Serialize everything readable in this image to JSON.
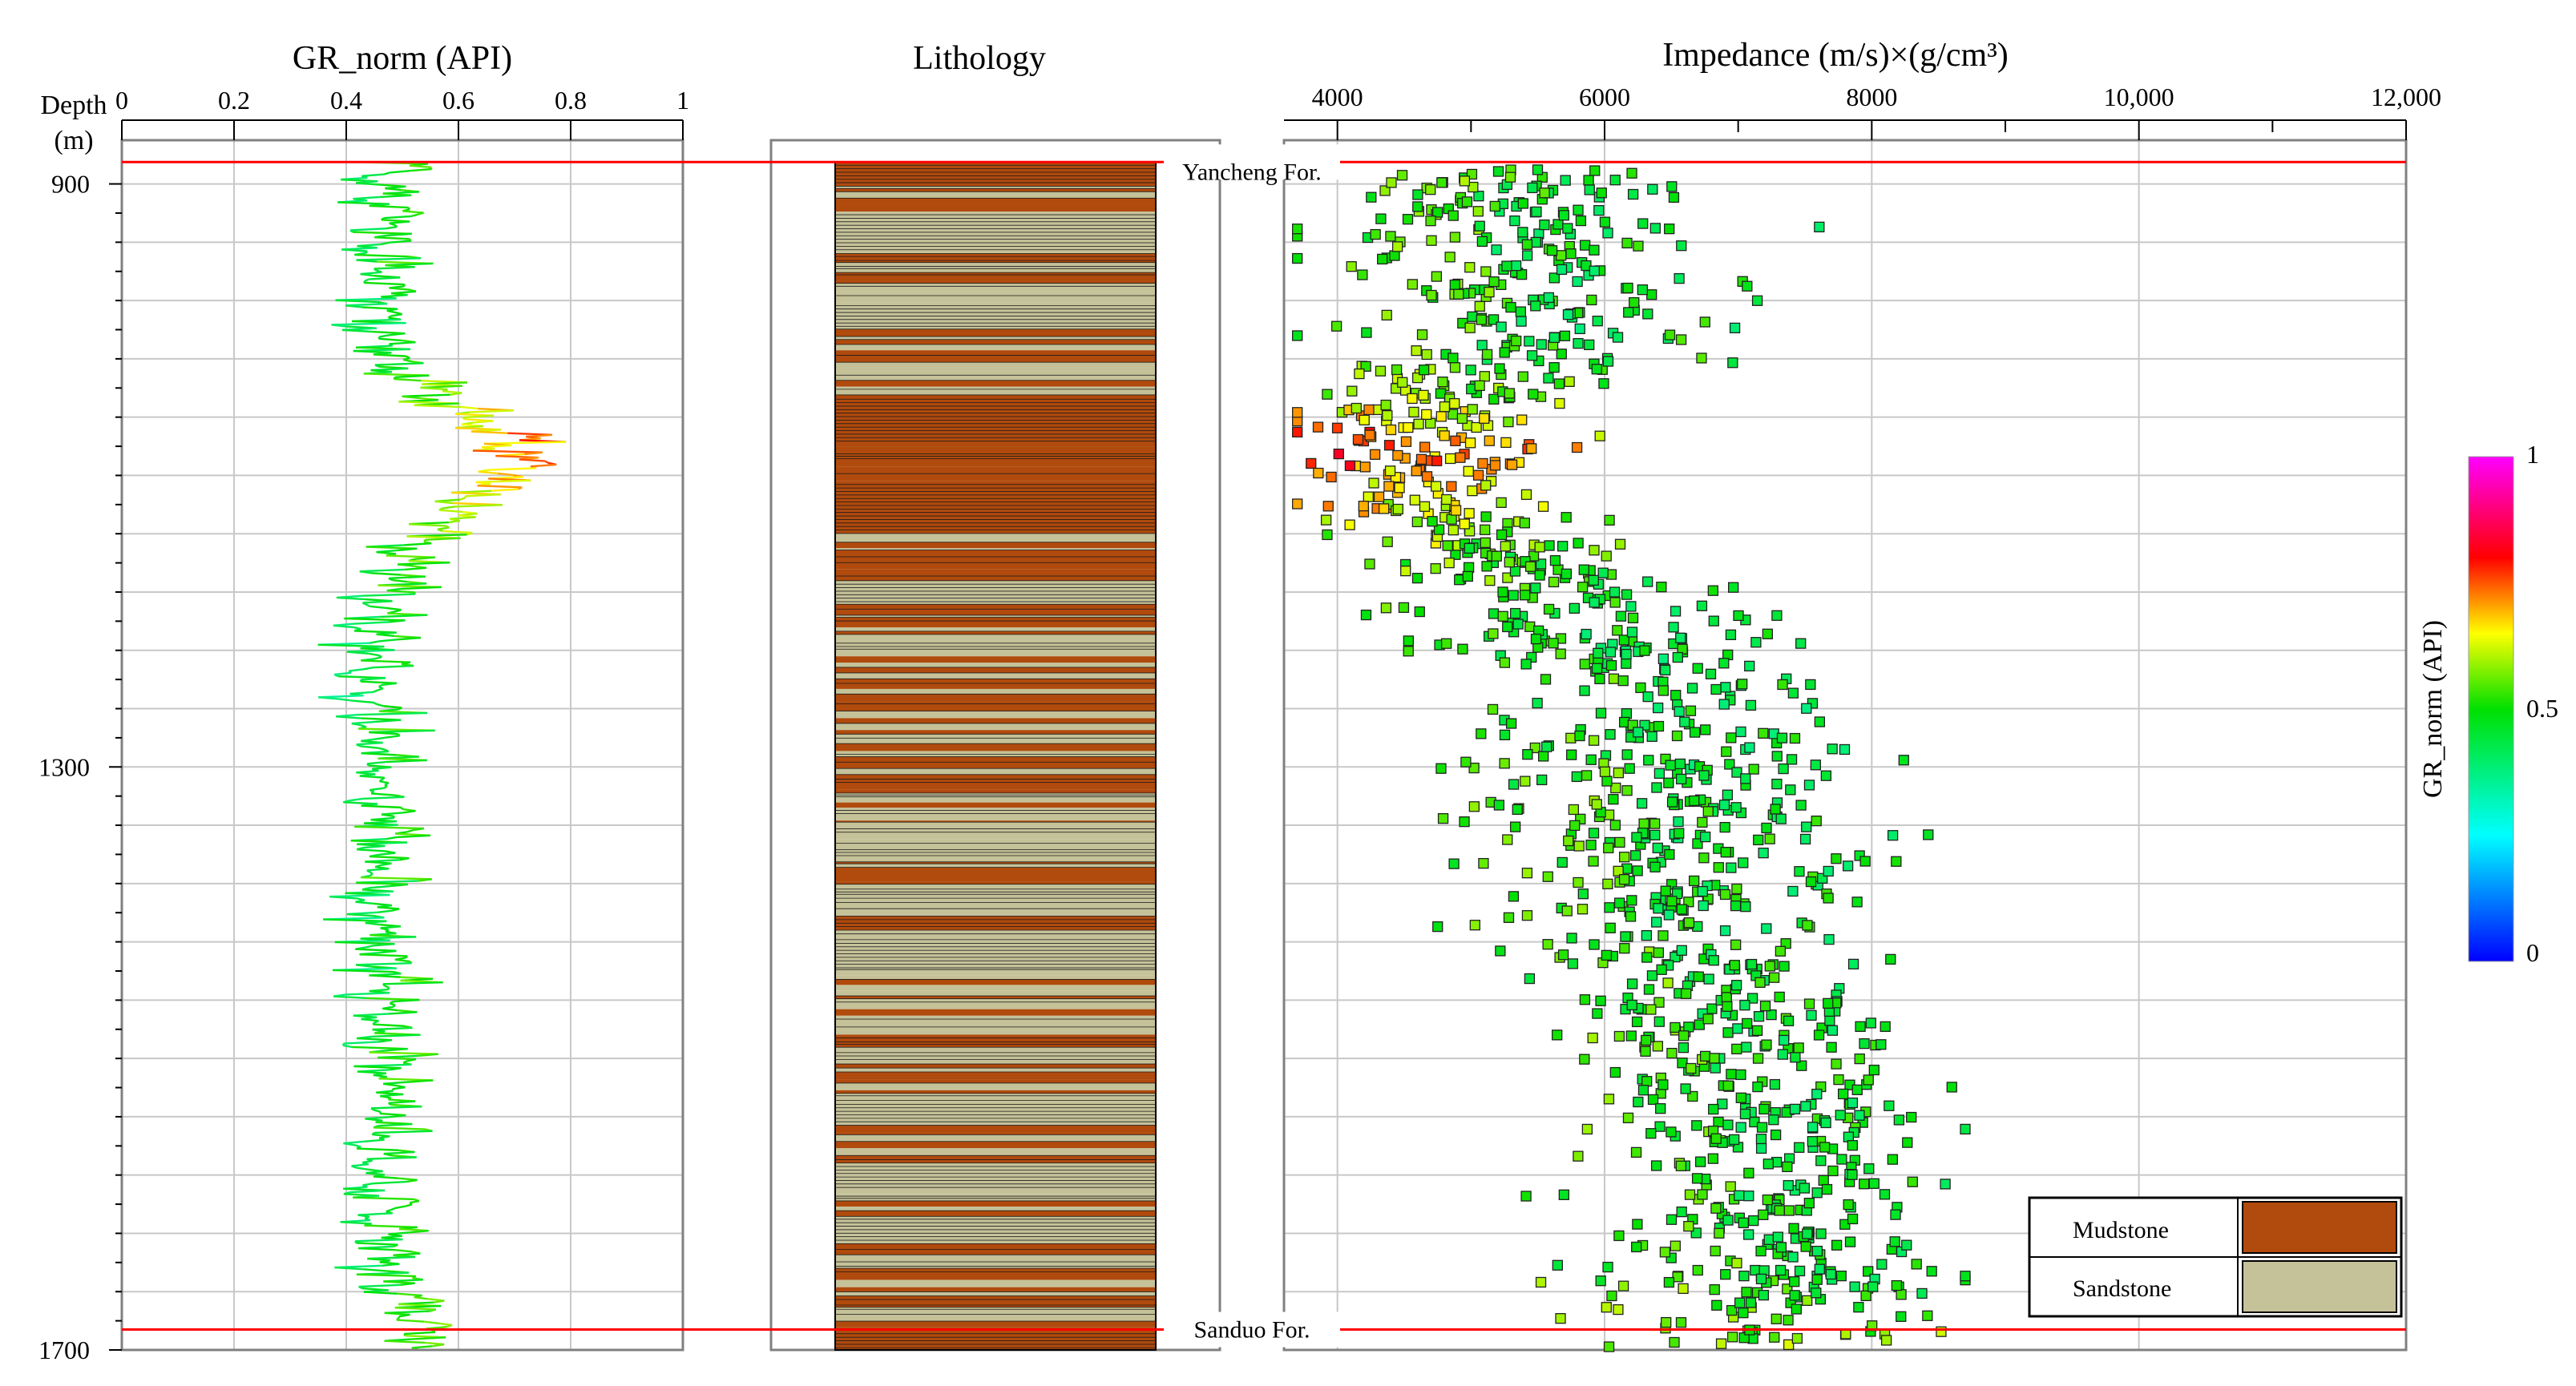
{
  "chart_data": [
    {
      "type": "line",
      "title": "GR_norm (API)",
      "xlabel": "GR_norm (API)",
      "ylabel": "Depth (m)",
      "ylabel_lines": [
        "Depth",
        "(m)"
      ],
      "xlim": [
        0,
        1
      ],
      "xticks": [
        0,
        0.2,
        0.4,
        0.6,
        0.8,
        1
      ],
      "xtick_labels": [
        "0",
        "0.2",
        "0.4",
        "0.6",
        "0.8",
        "1"
      ],
      "ylim": [
        1700,
        870
      ],
      "yticks": [
        900,
        1300,
        1700
      ],
      "ytick_labels": [
        "900",
        "1300",
        "1700"
      ],
      "color_by": "GR_norm",
      "series": [
        {
          "name": "GR_norm",
          "profile": [
            {
              "depth": 885,
              "gr": 0.5
            },
            {
              "depth": 900,
              "gr": 0.48
            },
            {
              "depth": 930,
              "gr": 0.47
            },
            {
              "depth": 970,
              "gr": 0.47
            },
            {
              "depth": 1000,
              "gr": 0.46
            },
            {
              "depth": 1030,
              "gr": 0.5
            },
            {
              "depth": 1050,
              "gr": 0.58
            },
            {
              "depth": 1065,
              "gr": 0.65
            },
            {
              "depth": 1080,
              "gr": 0.72
            },
            {
              "depth": 1095,
              "gr": 0.7
            },
            {
              "depth": 1110,
              "gr": 0.65
            },
            {
              "depth": 1125,
              "gr": 0.6
            },
            {
              "depth": 1140,
              "gr": 0.55
            },
            {
              "depth": 1160,
              "gr": 0.5
            },
            {
              "depth": 1200,
              "gr": 0.46
            },
            {
              "depth": 1250,
              "gr": 0.45
            },
            {
              "depth": 1300,
              "gr": 0.46
            },
            {
              "depth": 1350,
              "gr": 0.47
            },
            {
              "depth": 1400,
              "gr": 0.46
            },
            {
              "depth": 1450,
              "gr": 0.47
            },
            {
              "depth": 1500,
              "gr": 0.47
            },
            {
              "depth": 1550,
              "gr": 0.47
            },
            {
              "depth": 1600,
              "gr": 0.46
            },
            {
              "depth": 1650,
              "gr": 0.47
            },
            {
              "depth": 1685,
              "gr": 0.55
            },
            {
              "depth": 1700,
              "gr": 0.55
            }
          ]
        }
      ]
    },
    {
      "type": "column",
      "title": "Lithology",
      "ylim": [
        1700,
        870
      ],
      "categories": [
        "Mudstone",
        "Sandstone"
      ],
      "colors": {
        "Mudstone": "#b04a0d",
        "Sandstone": "#c5c299"
      },
      "series": [
        {
          "name": "Mudstone",
          "intervals": [
            [
              885,
              900
            ],
            [
              1045,
              1075
            ],
            [
              1100,
              1140
            ],
            [
              1400,
              1412
            ],
            [
              1686,
              1700
            ]
          ]
        },
        {
          "name": "Sandstone",
          "intervals": [
            [
              915,
              945
            ],
            [
              980,
              995
            ],
            [
              1170,
              1185
            ],
            [
              1420,
              1438
            ],
            [
              1530,
              1545
            ],
            [
              1570,
              1588
            ],
            [
              1610,
              1625
            ]
          ]
        }
      ]
    },
    {
      "type": "scatter",
      "title": "Impedance  (m/s)×(g/cm³)",
      "xlabel": "Impedance  (m/s)×(g/cm³)",
      "ylabel": "Depth (m)",
      "xlim": [
        3600,
        12000
      ],
      "xticks": [
        4000,
        6000,
        8000,
        10000,
        12000
      ],
      "xtick_labels": [
        "4000",
        "6000",
        "8000",
        "10,000",
        "12,000"
      ],
      "ylim": [
        1700,
        870
      ],
      "color_by": "GR_norm",
      "series": [
        {
          "name": "Impedance",
          "trend": [
            {
              "depth": 885,
              "mean": 5300,
              "sd": 650
            },
            {
              "depth": 1000,
              "mean": 5500,
              "sd": 650
            },
            {
              "depth": 1060,
              "mean": 4700,
              "sd": 550
            },
            {
              "depth": 1110,
              "mean": 4500,
              "sd": 450
            },
            {
              "depth": 1170,
              "mean": 5600,
              "sd": 600
            },
            {
              "depth": 1250,
              "mean": 6500,
              "sd": 700
            },
            {
              "depth": 1400,
              "mean": 6500,
              "sd": 700
            },
            {
              "depth": 1500,
              "mean": 7100,
              "sd": 600
            },
            {
              "depth": 1600,
              "mean": 7300,
              "sd": 650
            },
            {
              "depth": 1700,
              "mean": 7300,
              "sd": 700
            }
          ]
        }
      ]
    }
  ],
  "formations": [
    {
      "name": "Yancheng For.",
      "depth": 885
    },
    {
      "name": "Sanduo For.",
      "depth": 1686
    }
  ],
  "colorbar": {
    "label": "GR_norm (API)",
    "min": 0,
    "max": 1,
    "tick_labels": [
      "1",
      "0.5",
      "0"
    ]
  },
  "legend": {
    "items": [
      {
        "label": "Mudstone",
        "color": "#b04a0d"
      },
      {
        "label": "Sandstone",
        "color": "#c5c299"
      }
    ]
  },
  "colors": {
    "boundary": "#ff0000",
    "grid": "#c8c8c8",
    "axis": "#808080"
  }
}
